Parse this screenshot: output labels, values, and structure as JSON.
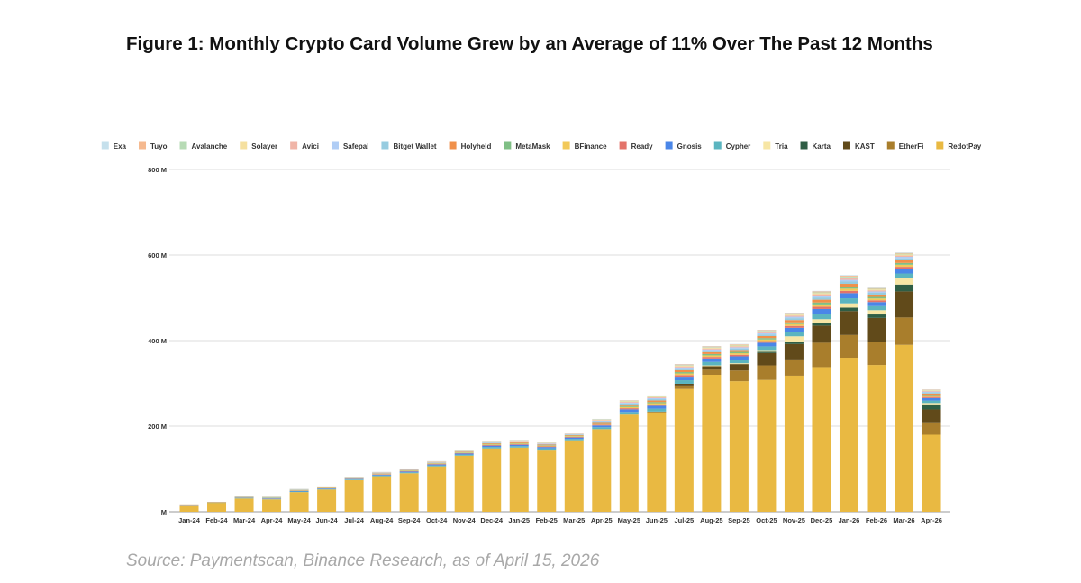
{
  "title": "Figure 1: Monthly Crypto Card Volume Grew by an Average of 11% Over The Past 12 Months",
  "source": "Source: Paymentscan, Binance Research, as of April 15, 2026",
  "chart_data": {
    "type": "bar",
    "stacked": true,
    "title": "Figure 1: Monthly Crypto Card Volume Grew by an Average of 11% Over The Past 12 Months",
    "xlabel": "",
    "ylabel": "",
    "ylim": [
      0,
      800
    ],
    "y_ticks": [
      {
        "value": 0,
        "label": "M"
      },
      {
        "value": 200,
        "label": "200 M"
      },
      {
        "value": 400,
        "label": "400 M"
      },
      {
        "value": 600,
        "label": "600 M"
      },
      {
        "value": 800,
        "label": "800 M"
      }
    ],
    "grid": true,
    "legend_position": "top",
    "categories": [
      "Jan-24",
      "Feb-24",
      "Mar-24",
      "Apr-24",
      "May-24",
      "Jun-24",
      "Jul-24",
      "Aug-24",
      "Sep-24",
      "Oct-24",
      "Nov-24",
      "Dec-24",
      "Jan-25",
      "Feb-25",
      "Mar-25",
      "Apr-25",
      "May-25",
      "Jun-25",
      "Jul-25",
      "Aug-25",
      "Sep-25",
      "Oct-25",
      "Nov-25",
      "Dec-25",
      "Jan-26",
      "Feb-26",
      "Mar-26",
      "Apr-26"
    ],
    "series": [
      {
        "name": "Exa",
        "color": "#c5e0ec",
        "values": [
          0,
          0,
          0.1,
          0.1,
          0.1,
          0.1,
          0.2,
          0.2,
          0.2,
          0.2,
          0.3,
          0.4,
          0.4,
          0.3,
          0.4,
          0.5,
          0.7,
          0.8,
          0.9,
          0.9,
          0.9,
          0.9,
          1.1,
          1.3,
          1.3,
          1.1,
          1.2,
          0.6
        ]
      },
      {
        "name": "Tuyo",
        "color": "#f5b98f",
        "values": [
          0.1,
          0.1,
          0.2,
          0.2,
          0.2,
          0.2,
          0.2,
          0.3,
          0.3,
          0.4,
          0.4,
          0.5,
          0.5,
          0.5,
          0.5,
          0.7,
          1,
          1.1,
          1.4,
          1.4,
          1.4,
          1.4,
          1.7,
          2,
          2,
          1.6,
          1.8,
          1
        ]
      },
      {
        "name": "Avalanche",
        "color": "#b7dbb5",
        "values": [
          0.1,
          0.1,
          0.2,
          0.2,
          0.2,
          0.2,
          0.2,
          0.3,
          0.3,
          0.4,
          0.4,
          0.5,
          0.5,
          0.5,
          0.5,
          0.7,
          1,
          1.1,
          1.4,
          1.4,
          1.4,
          1.4,
          1.7,
          2,
          2,
          1.6,
          1.8,
          1
        ]
      },
      {
        "name": "Solayer",
        "color": "#f5e0a0",
        "values": [
          0.1,
          0.1,
          0.2,
          0.2,
          0.3,
          0.3,
          0.3,
          0.4,
          0.4,
          0.5,
          0.6,
          0.7,
          0.7,
          0.7,
          0.7,
          1,
          1.4,
          1.5,
          1.8,
          1.8,
          1.8,
          1.9,
          2.2,
          2.6,
          2.6,
          2.1,
          2.4,
          1.3
        ]
      },
      {
        "name": "Avici",
        "color": "#f0b5a8",
        "values": [
          0.1,
          0.1,
          0.3,
          0.3,
          0.4,
          0.4,
          0.4,
          0.5,
          0.6,
          0.6,
          0.7,
          0.9,
          0.9,
          0.9,
          0.9,
          1.2,
          1.7,
          1.9,
          2.3,
          2.3,
          2.3,
          2.4,
          2.8,
          3.3,
          3.3,
          2.7,
          3,
          1.6
        ]
      },
      {
        "name": "Safepal",
        "color": "#b0cdf5",
        "values": [
          0.1,
          0.1,
          0.3,
          0.4,
          0.4,
          0.4,
          0.5,
          0.6,
          0.7,
          0.7,
          0.8,
          1.1,
          1.1,
          1,
          1.1,
          1.4,
          2,
          2.3,
          2.8,
          2.7,
          2.7,
          2.8,
          3.3,
          4,
          4,
          3.2,
          3.6,
          1.9
        ]
      },
      {
        "name": "Bitget Wallet",
        "color": "#97cce0",
        "values": [
          0.2,
          0.2,
          0.4,
          0.5,
          0.6,
          0.6,
          0.6,
          0.8,
          0.9,
          1,
          1.1,
          1.4,
          1.4,
          1.4,
          1.4,
          1.9,
          2.7,
          3,
          3.7,
          3.6,
          3.6,
          3.8,
          4.4,
          5.3,
          5.3,
          4.2,
          4.8,
          2.6
        ]
      },
      {
        "name": "Holyheld",
        "color": "#f0904a",
        "values": [
          0.2,
          0.2,
          0.5,
          0.6,
          0.7,
          0.7,
          0.8,
          1,
          1.1,
          1.2,
          1.4,
          1.8,
          1.8,
          1.7,
          1.8,
          2.4,
          3.4,
          3.8,
          4.6,
          4.5,
          4.5,
          4.7,
          5.5,
          6.6,
          6.6,
          5.3,
          6,
          3.2
        ]
      },
      {
        "name": "MetaMask",
        "color": "#7fbf85",
        "values": [
          0.1,
          0.1,
          0.4,
          0.4,
          0.5,
          0.5,
          0.6,
          0.7,
          0.8,
          0.8,
          1,
          1.3,
          1.3,
          1.2,
          1.3,
          1.7,
          2.4,
          2.7,
          3.2,
          3.2,
          3.2,
          3.3,
          3.9,
          4.6,
          4.6,
          3.7,
          4.2,
          2.2
        ]
      },
      {
        "name": "BFinance",
        "color": "#f2c95a",
        "values": [
          0.2,
          0.2,
          0.4,
          0.5,
          0.6,
          0.6,
          0.6,
          0.8,
          0.9,
          1,
          1.1,
          1.4,
          1.4,
          1.4,
          1.4,
          1.9,
          2.7,
          3,
          3.7,
          3.6,
          3.6,
          3.8,
          4.4,
          5.3,
          5.3,
          4.2,
          4.8,
          2.6
        ]
      },
      {
        "name": "Ready",
        "color": "#e3736a",
        "values": [
          0.2,
          0.2,
          0.4,
          0.5,
          0.6,
          0.6,
          0.6,
          0.8,
          0.9,
          1,
          1.1,
          1.4,
          1.4,
          1.4,
          1.4,
          1.9,
          2.7,
          3,
          3.7,
          3.6,
          3.6,
          3.8,
          4.4,
          5.3,
          5.3,
          4.2,
          4.8,
          2.6
        ]
      },
      {
        "name": "Gnosis",
        "color": "#4a86e8",
        "values": [
          0.4,
          0.4,
          0.9,
          1.1,
          1.3,
          1.3,
          1.4,
          1.8,
          2,
          2.2,
          2.5,
          3.2,
          3.2,
          3.1,
          3.2,
          4.3,
          6.1,
          6.8,
          8.3,
          8.1,
          8.1,
          8.5,
          9.9,
          11.9,
          11.9,
          9.5,
          10.8,
          5.8
        ]
      },
      {
        "name": "Cypher",
        "color": "#5bb5c0",
        "values": [
          0.4,
          0.4,
          0.9,
          1.1,
          1.3,
          1.3,
          1.4,
          1.8,
          2,
          2.2,
          2.5,
          3.2,
          3.2,
          3.1,
          3.2,
          4.3,
          6.1,
          6.8,
          8.3,
          8.1,
          8.1,
          8.5,
          9.9,
          11.9,
          11.9,
          9.5,
          10.8,
          5.8
        ]
      },
      {
        "name": "Tria",
        "color": "#f7e6a5",
        "values": [
          0,
          0,
          0,
          0,
          0,
          0,
          0,
          0,
          0,
          0,
          0,
          0,
          0,
          0,
          0,
          0,
          0,
          0,
          0,
          2,
          2,
          4,
          12,
          8,
          10,
          10,
          15,
          3
        ]
      },
      {
        "name": "Karta",
        "color": "#2f5e45",
        "values": [
          0,
          0,
          0,
          0,
          0,
          0,
          0,
          0,
          0,
          0,
          0,
          0,
          0,
          0,
          0,
          0,
          0,
          0,
          0,
          0,
          0,
          3,
          6,
          7,
          8,
          8,
          16,
          12
        ]
      },
      {
        "name": "KAST",
        "color": "#614a1a",
        "values": [
          0,
          0,
          0,
          0,
          0,
          0,
          0,
          0,
          0,
          0,
          0,
          0,
          0,
          0,
          0,
          0,
          0,
          0,
          4,
          8,
          15,
          29,
          36,
          40,
          56,
          57,
          61,
          30
        ]
      },
      {
        "name": "EtherFi",
        "color": "#a97e2c",
        "values": [
          0,
          0,
          0,
          0,
          0,
          0,
          0,
          0,
          0,
          0,
          0,
          0,
          0,
          0,
          0,
          0,
          0,
          2,
          8,
          12,
          25,
          34,
          38,
          57,
          53,
          53,
          64,
          29
        ]
      },
      {
        "name": "RedotPay",
        "color": "#e9b942",
        "values": [
          15,
          21,
          31,
          29,
          46,
          52,
          74,
          83,
          90,
          106,
          131,
          148,
          150,
          145,
          167,
          193,
          227,
          232,
          287,
          320,
          305,
          308,
          318,
          338,
          360,
          343,
          390,
          180
        ]
      }
    ]
  }
}
